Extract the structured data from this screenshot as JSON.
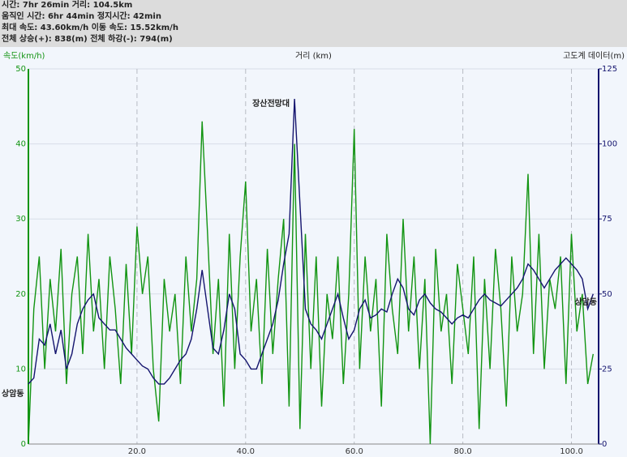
{
  "header": {
    "lines": [
      "시간: 7hr 26min  거리: 104.5km",
      "움직인 시간: 6hr 44min  정지시간: 42min",
      "최대 속도: 43.60km/h  이동 속도: 15.52km/h",
      "전체 상승(+): 838(m)  전체 하강(-): 794(m)"
    ]
  },
  "chart_data": {
    "type": "line",
    "ylabel": "속도(km/h)",
    "xlabel": "거리 (km)",
    "y2label": "고도계 데이터(m)",
    "xlim": [
      0,
      105
    ],
    "xticks": [
      {
        "value": 20,
        "label": "20.0"
      },
      {
        "value": 40,
        "label": "40.0"
      },
      {
        "value": 60,
        "label": "60.0"
      },
      {
        "value": 80,
        "label": "80.0"
      },
      {
        "value": 100,
        "label": "100.0"
      }
    ],
    "ylim": [
      0,
      50
    ],
    "yticks": [
      0,
      10,
      20,
      30,
      40,
      50
    ],
    "y2lim": [
      0,
      125
    ],
    "y2ticks": [
      0,
      25,
      50,
      75,
      100,
      125
    ],
    "grid": true,
    "annotations": [
      "상암동",
      "장산전망대",
      "상암동"
    ],
    "x": [
      0,
      1,
      2,
      3,
      4,
      5,
      6,
      7,
      8,
      9,
      10,
      11,
      12,
      13,
      14,
      15,
      16,
      17,
      18,
      19,
      20,
      21,
      22,
      23,
      24,
      25,
      26,
      27,
      28,
      29,
      30,
      31,
      32,
      33,
      34,
      35,
      36,
      37,
      38,
      39,
      40,
      41,
      42,
      43,
      44,
      45,
      46,
      47,
      48,
      49,
      50,
      51,
      52,
      53,
      54,
      55,
      56,
      57,
      58,
      59,
      60,
      61,
      62,
      63,
      64,
      65,
      66,
      67,
      68,
      69,
      70,
      71,
      72,
      73,
      74,
      75,
      76,
      77,
      78,
      79,
      80,
      81,
      82,
      83,
      84,
      85,
      86,
      87,
      88,
      89,
      90,
      91,
      92,
      93,
      94,
      95,
      96,
      97,
      98,
      99,
      100,
      101,
      102,
      103,
      104
    ],
    "series": [
      {
        "name": "속도",
        "color": "#129412",
        "axis": "y",
        "values": [
          0,
          18,
          25,
          10,
          22,
          15,
          26,
          8,
          20,
          25,
          12,
          28,
          15,
          22,
          10,
          25,
          18,
          8,
          24,
          12,
          29,
          20,
          25,
          10,
          3,
          22,
          15,
          20,
          8,
          25,
          15,
          22,
          43,
          28,
          12,
          22,
          5,
          28,
          10,
          25,
          35,
          15,
          22,
          8,
          26,
          12,
          22,
          30,
          5,
          40,
          2,
          28,
          10,
          25,
          5,
          20,
          14,
          25,
          8,
          20,
          42,
          10,
          25,
          15,
          22,
          5,
          28,
          18,
          12,
          30,
          15,
          25,
          10,
          22,
          0,
          26,
          15,
          20,
          8,
          24,
          18,
          12,
          25,
          2,
          22,
          10,
          26,
          18,
          5,
          25,
          15,
          20,
          36,
          12,
          28,
          10,
          22,
          18,
          25,
          8,
          28,
          15,
          20,
          8,
          12
        ]
      },
      {
        "name": "고도",
        "color": "#14146e",
        "axis": "y2",
        "values": [
          20,
          22,
          35,
          33,
          40,
          30,
          38,
          25,
          30,
          40,
          45,
          48,
          50,
          42,
          40,
          38,
          38,
          35,
          32,
          30,
          28,
          26,
          25,
          22,
          20,
          20,
          22,
          25,
          28,
          30,
          35,
          45,
          58,
          45,
          32,
          30,
          38,
          50,
          45,
          30,
          28,
          25,
          25,
          30,
          35,
          40,
          48,
          60,
          70,
          115,
          80,
          45,
          40,
          38,
          35,
          40,
          45,
          50,
          42,
          35,
          38,
          45,
          48,
          42,
          43,
          45,
          44,
          50,
          55,
          52,
          45,
          43,
          48,
          50,
          47,
          45,
          44,
          42,
          40,
          42,
          43,
          42,
          45,
          48,
          50,
          48,
          47,
          46,
          48,
          50,
          52,
          55,
          60,
          58,
          55,
          52,
          55,
          58,
          60,
          62,
          60,
          58,
          55,
          45,
          50
        ]
      }
    ]
  }
}
